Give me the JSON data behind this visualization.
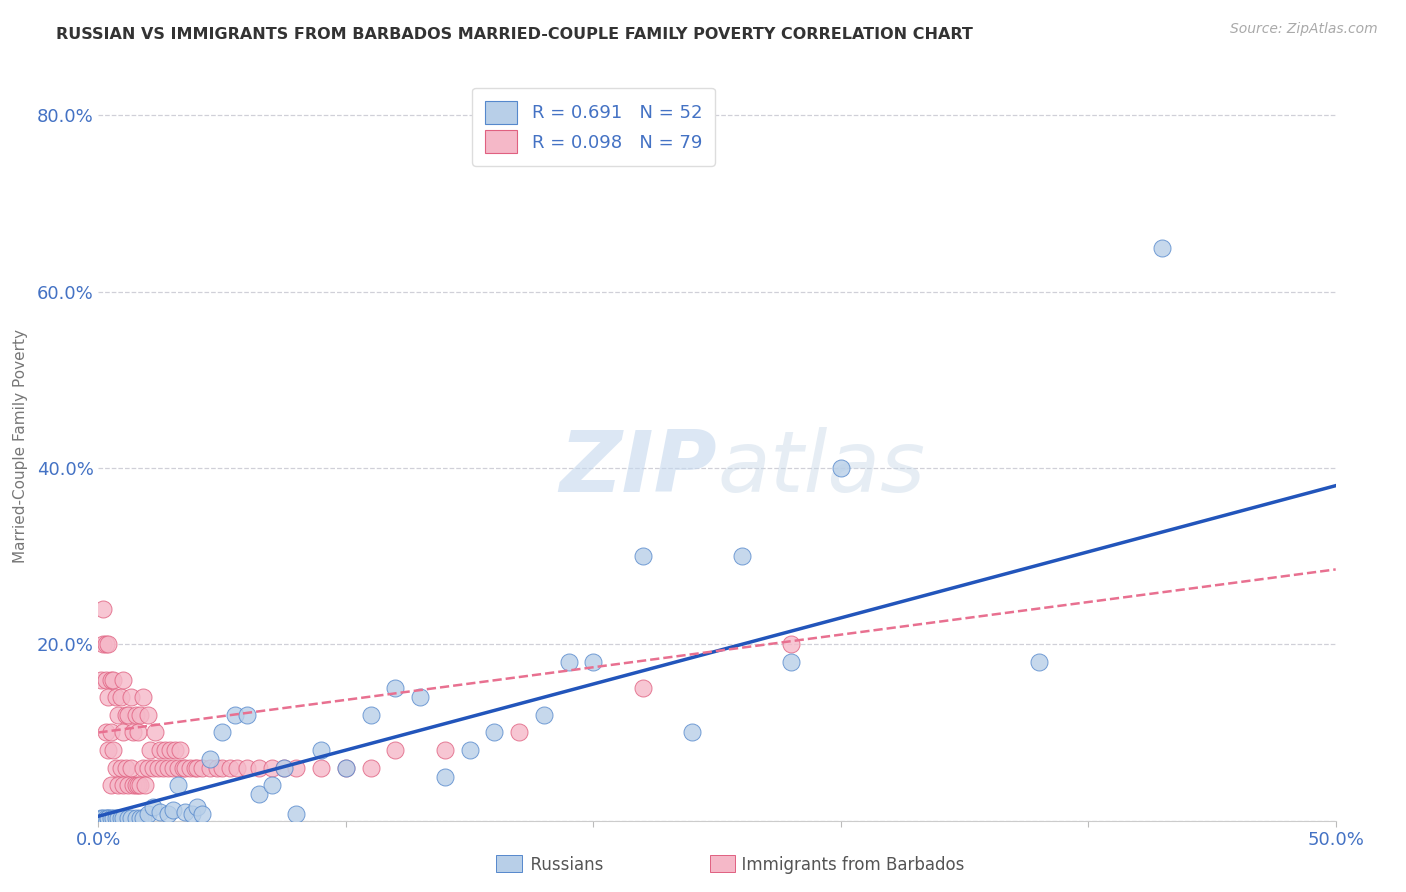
{
  "title": "RUSSIAN VS IMMIGRANTS FROM BARBADOS MARRIED-COUPLE FAMILY POVERTY CORRELATION CHART",
  "source": "Source: ZipAtlas.com",
  "ylabel": "Married-Couple Family Poverty",
  "xlim": [
    0.0,
    0.5
  ],
  "ylim": [
    0.0,
    0.85
  ],
  "xticks": [
    0.0,
    0.1,
    0.2,
    0.3,
    0.4,
    0.5
  ],
  "xticklabels": [
    "0.0%",
    "",
    "",
    "",
    "",
    "50.0%"
  ],
  "yticks": [
    0.0,
    0.2,
    0.4,
    0.6,
    0.8
  ],
  "yticklabels": [
    "",
    "20.0%",
    "40.0%",
    "60.0%",
    "80.0%"
  ],
  "background_color": "#ffffff",
  "grid_color": "#d0d0d8",
  "russian_color": "#b8cfe8",
  "barbados_color": "#f5b8c8",
  "russian_R": 0.691,
  "russian_N": 52,
  "barbados_R": 0.098,
  "barbados_N": 79,
  "title_color": "#333333",
  "axis_color": "#4472c4",
  "watermark_color": "#dce8f5",
  "russian_edge_color": "#5588cc",
  "barbados_edge_color": "#e06080",
  "russian_line_color": "#2255bb",
  "barbados_line_color": "#e87090",
  "russians_x": [
    0.001,
    0.002,
    0.003,
    0.004,
    0.004,
    0.005,
    0.006,
    0.007,
    0.008,
    0.009,
    0.01,
    0.012,
    0.013,
    0.015,
    0.017,
    0.018,
    0.02,
    0.022,
    0.025,
    0.028,
    0.03,
    0.032,
    0.035,
    0.038,
    0.04,
    0.042,
    0.045,
    0.05,
    0.055,
    0.06,
    0.065,
    0.07,
    0.075,
    0.08,
    0.09,
    0.1,
    0.11,
    0.12,
    0.13,
    0.14,
    0.15,
    0.16,
    0.18,
    0.19,
    0.2,
    0.22,
    0.24,
    0.26,
    0.28,
    0.3,
    0.38,
    0.43
  ],
  "russians_y": [
    0.003,
    0.003,
    0.003,
    0.003,
    0.003,
    0.003,
    0.003,
    0.003,
    0.003,
    0.003,
    0.003,
    0.003,
    0.003,
    0.003,
    0.003,
    0.003,
    0.008,
    0.015,
    0.01,
    0.008,
    0.012,
    0.04,
    0.01,
    0.008,
    0.015,
    0.008,
    0.07,
    0.1,
    0.12,
    0.12,
    0.03,
    0.04,
    0.06,
    0.008,
    0.08,
    0.06,
    0.12,
    0.15,
    0.14,
    0.05,
    0.08,
    0.1,
    0.12,
    0.18,
    0.18,
    0.3,
    0.1,
    0.3,
    0.18,
    0.4,
    0.18,
    0.65
  ],
  "barbados_x": [
    0.001,
    0.002,
    0.002,
    0.003,
    0.003,
    0.003,
    0.004,
    0.004,
    0.004,
    0.005,
    0.005,
    0.005,
    0.006,
    0.006,
    0.007,
    0.007,
    0.008,
    0.008,
    0.009,
    0.009,
    0.01,
    0.01,
    0.01,
    0.011,
    0.011,
    0.012,
    0.012,
    0.013,
    0.013,
    0.014,
    0.014,
    0.015,
    0.015,
    0.016,
    0.016,
    0.017,
    0.017,
    0.018,
    0.018,
    0.019,
    0.02,
    0.02,
    0.021,
    0.022,
    0.023,
    0.024,
    0.025,
    0.026,
    0.027,
    0.028,
    0.029,
    0.03,
    0.031,
    0.032,
    0.033,
    0.034,
    0.035,
    0.037,
    0.039,
    0.04,
    0.042,
    0.045,
    0.048,
    0.05,
    0.053,
    0.056,
    0.06,
    0.065,
    0.07,
    0.075,
    0.08,
    0.09,
    0.1,
    0.11,
    0.12,
    0.14,
    0.17,
    0.22,
    0.28
  ],
  "barbados_y": [
    0.16,
    0.2,
    0.24,
    0.1,
    0.16,
    0.2,
    0.08,
    0.14,
    0.2,
    0.04,
    0.1,
    0.16,
    0.08,
    0.16,
    0.06,
    0.14,
    0.04,
    0.12,
    0.06,
    0.14,
    0.04,
    0.1,
    0.16,
    0.06,
    0.12,
    0.04,
    0.12,
    0.06,
    0.14,
    0.04,
    0.1,
    0.04,
    0.12,
    0.04,
    0.1,
    0.04,
    0.12,
    0.06,
    0.14,
    0.04,
    0.06,
    0.12,
    0.08,
    0.06,
    0.1,
    0.06,
    0.08,
    0.06,
    0.08,
    0.06,
    0.08,
    0.06,
    0.08,
    0.06,
    0.08,
    0.06,
    0.06,
    0.06,
    0.06,
    0.06,
    0.06,
    0.06,
    0.06,
    0.06,
    0.06,
    0.06,
    0.06,
    0.06,
    0.06,
    0.06,
    0.06,
    0.06,
    0.06,
    0.06,
    0.08,
    0.08,
    0.1,
    0.15,
    0.2
  ],
  "russian_line_x0": 0.0,
  "russian_line_y0": 0.005,
  "russian_line_x1": 0.5,
  "russian_line_y1": 0.38,
  "barbados_line_x0": 0.0,
  "barbados_line_y0": 0.1,
  "barbados_line_x1": 0.5,
  "barbados_line_y1": 0.285
}
